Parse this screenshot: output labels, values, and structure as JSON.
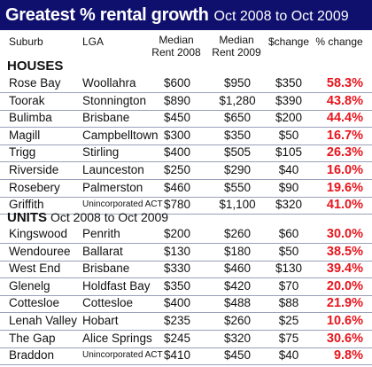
{
  "title": {
    "main": "Greatest % rental growth",
    "sub": "Oct 2008 to Oct 2009"
  },
  "columns": {
    "suburb": "Suburb",
    "lga": "LGA",
    "rent2008": "Median\nRent 2008",
    "rent2009": "Median\nRent 2009",
    "change": "$change",
    "pct": "% change"
  },
  "houses": {
    "label": "HOUSES",
    "rows": [
      {
        "suburb": "Rose Bay",
        "lga": "Woollahra",
        "r08": "$600",
        "r09": "$950",
        "chg": "$350",
        "pct": "58.3%"
      },
      {
        "suburb": "Toorak",
        "lga": "Stonnington",
        "r08": "$890",
        "r09": "$1,280",
        "chg": "$390",
        "pct": "43.8%"
      },
      {
        "suburb": "Bulimba",
        "lga": "Brisbane",
        "r08": "$450",
        "r09": "$650",
        "chg": "$200",
        "pct": "44.4%"
      },
      {
        "suburb": "Magill",
        "lga": "Campbelltown",
        "r08": "$300",
        "r09": "$350",
        "chg": "$50",
        "pct": "16.7%"
      },
      {
        "suburb": "Trigg",
        "lga": "Stirling",
        "r08": "$400",
        "r09": "$505",
        "chg": "$105",
        "pct": "26.3%"
      },
      {
        "suburb": "Riverside",
        "lga": "Launceston",
        "r08": "$250",
        "r09": "$290",
        "chg": "$40",
        "pct": "16.0%"
      },
      {
        "suburb": "Rosebery",
        "lga": "Palmerston",
        "r08": "$460",
        "r09": "$550",
        "chg": "$90",
        "pct": "19.6%"
      },
      {
        "suburb": "Griffith",
        "lga": "Unincorporated ACT",
        "r08": "$780",
        "r09": "$1,100",
        "chg": "$320",
        "pct": "41.0%",
        "small": true
      }
    ]
  },
  "units": {
    "label": "UNITS",
    "sub": "Oct 2008 to Oct 2009",
    "rows": [
      {
        "suburb": "Kingswood",
        "lga": "Penrith",
        "r08": "$200",
        "r09": "$260",
        "chg": "$60",
        "pct": "30.0%"
      },
      {
        "suburb": "Wendouree",
        "lga": "Ballarat",
        "r08": "$130",
        "r09": "$180",
        "chg": "$50",
        "pct": "38.5%"
      },
      {
        "suburb": "West End",
        "lga": "Brisbane",
        "r08": "$330",
        "r09": "$460",
        "chg": "$130",
        "pct": "39.4%"
      },
      {
        "suburb": "Glenelg",
        "lga": "Holdfast Bay",
        "r08": "$350",
        "r09": "$420",
        "chg": "$70",
        "pct": "20.0%"
      },
      {
        "suburb": "Cottesloe",
        "lga": "Cottesloe",
        "r08": "$400",
        "r09": "$488",
        "chg": "$88",
        "pct": "21.9%"
      },
      {
        "suburb": "Lenah Valley",
        "lga": "Hobart",
        "r08": "$235",
        "r09": "$260",
        "chg": "$25",
        "pct": "10.6%"
      },
      {
        "suburb": "The Gap",
        "lga": "Alice Springs",
        "r08": "$245",
        "r09": "$320",
        "chg": "$75",
        "pct": "30.6%"
      },
      {
        "suburb": "Braddon",
        "lga": "Unincorporated ACT",
        "r08": "$410",
        "r09": "$450",
        "chg": "$40",
        "pct": "9.8%",
        "small": true
      }
    ]
  }
}
